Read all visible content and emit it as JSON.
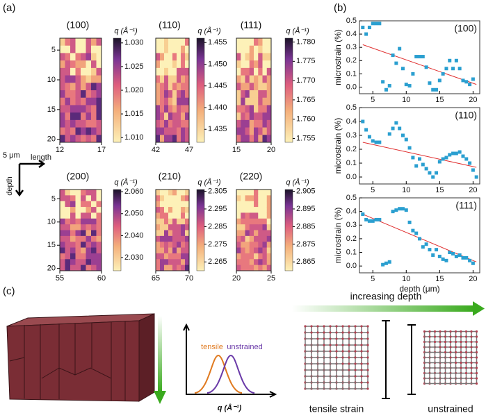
{
  "panel_labels": [
    "(a)",
    "(b)",
    "(c)"
  ],
  "chart_data": [
    {
      "type": "heatmap",
      "title": "(100)",
      "colorbar_label": "q (Å⁻¹)",
      "clim": [
        1.009,
        1.031
      ],
      "cticks": [
        {
          "value": 1.01,
          "label": "1.010"
        },
        {
          "value": 1.015,
          "label": "1.015"
        },
        {
          "value": 1.02,
          "label": "1.020"
        },
        {
          "value": 1.025,
          "label": "1.025"
        },
        {
          "value": 1.03,
          "label": "1.030"
        }
      ],
      "xlim": [
        12,
        17
      ],
      "xticks": [
        12,
        17
      ],
      "ylim": [
        3,
        20.5
      ],
      "yticks": [
        5,
        10,
        15,
        20
      ]
    },
    {
      "type": "heatmap",
      "title": "(110)",
      "colorbar_label": "q (Å⁻¹)",
      "clim": [
        1.432,
        1.456
      ],
      "cticks": [
        {
          "value": 1.435,
          "label": "1.435"
        },
        {
          "value": 1.44,
          "label": "1.440"
        },
        {
          "value": 1.445,
          "label": "1.445"
        },
        {
          "value": 1.45,
          "label": "1.450"
        },
        {
          "value": 1.455,
          "label": "1.455"
        }
      ],
      "xlim": [
        42,
        47
      ],
      "xticks": [
        42,
        47
      ],
      "ylim": [
        3,
        20.5
      ]
    },
    {
      "type": "heatmap",
      "title": "(111)",
      "colorbar_label": "q (Å⁻¹)",
      "clim": [
        1.754,
        1.781
      ],
      "cticks": [
        {
          "value": 1.755,
          "label": "1.755"
        },
        {
          "value": 1.76,
          "label": "1.760"
        },
        {
          "value": 1.765,
          "label": "1.765"
        },
        {
          "value": 1.77,
          "label": "1.770"
        },
        {
          "value": 1.775,
          "label": "1.775"
        },
        {
          "value": 1.78,
          "label": "1.780"
        }
      ],
      "xlim": [
        15,
        20
      ],
      "xticks": [
        15,
        20
      ],
      "ylim": [
        3,
        20.5
      ]
    },
    {
      "type": "heatmap",
      "title": "(200)",
      "colorbar_label": "q (Å⁻¹)",
      "clim": [
        2.024,
        2.061
      ],
      "cticks": [
        {
          "value": 2.03,
          "label": "2.030"
        },
        {
          "value": 2.04,
          "label": "2.040"
        },
        {
          "value": 2.05,
          "label": "2.050"
        },
        {
          "value": 2.06,
          "label": "2.060"
        }
      ],
      "xlim": [
        55,
        60
      ],
      "xticks": [
        55,
        60
      ],
      "ylim": [
        3,
        20.5
      ],
      "yticks": [
        5,
        10,
        15,
        20
      ]
    },
    {
      "type": "heatmap",
      "title": "(210)",
      "colorbar_label": "q (Å⁻¹)",
      "clim": [
        2.26,
        2.306
      ],
      "cticks": [
        {
          "value": 2.265,
          "label": "2.265"
        },
        {
          "value": 2.275,
          "label": "2.275"
        },
        {
          "value": 2.285,
          "label": "2.285"
        },
        {
          "value": 2.295,
          "label": "2.295"
        },
        {
          "value": 2.305,
          "label": "2.305"
        }
      ],
      "xlim": [
        65,
        70
      ],
      "xticks": [
        65,
        70
      ],
      "ylim": [
        3,
        20.5
      ]
    },
    {
      "type": "heatmap",
      "title": "(220)",
      "colorbar_label": "q (Å⁻¹)",
      "clim": [
        2.86,
        2.906
      ],
      "cticks": [
        {
          "value": 2.865,
          "label": "2.865"
        },
        {
          "value": 2.875,
          "label": "2.875"
        },
        {
          "value": 2.885,
          "label": "2.885"
        },
        {
          "value": 2.895,
          "label": "2.895"
        },
        {
          "value": 2.905,
          "label": "2.905"
        }
      ],
      "xlim": [
        20,
        25
      ],
      "xticks": [
        20,
        25
      ],
      "ylim": [
        3,
        20.5
      ]
    },
    {
      "type": "scatter",
      "title": "(100)",
      "ylabel": "microstrain (%)",
      "color": "#2a9fd0",
      "fit_color": "#e03030",
      "x": [
        3.5,
        4,
        4.5,
        5,
        5.5,
        6,
        6.5,
        7,
        7.5,
        8,
        8.5,
        9,
        9.5,
        10,
        10.5,
        11,
        11.5,
        12,
        12.5,
        13,
        13.5,
        14,
        14.5,
        15,
        15.5,
        16,
        16.5,
        17,
        17.5,
        18,
        18.5,
        19,
        19.5,
        20
      ],
      "values": [
        0.45,
        0.4,
        0.45,
        0.48,
        0.48,
        0.48,
        0.04,
        -0.02,
        0.01,
        0.24,
        0.18,
        0.29,
        0.14,
        0.02,
        0.01,
        0.1,
        0.23,
        0.23,
        0.23,
        0.15,
        0.03,
        -0.02,
        -0.02,
        0.05,
        0.1,
        0.14,
        0.2,
        0.14,
        0.2,
        0.14,
        0.05,
        0.04,
        0.02,
        0.06
      ],
      "fit": {
        "x": [
          3.5,
          20.5
        ],
        "values": [
          0.32,
          0.02
        ]
      },
      "xlim": [
        3,
        21
      ],
      "xticks": [
        5,
        10,
        15,
        20
      ],
      "ylim": [
        -0.05,
        0.5
      ],
      "yticks": [
        {
          "value": 0,
          "label": "0.0"
        },
        {
          "value": 0.1,
          "label": "0.1"
        },
        {
          "value": 0.2,
          "label": "0.2"
        },
        {
          "value": 0.3,
          "label": "0.3"
        },
        {
          "value": 0.4,
          "label": "0.4"
        },
        {
          "value": 0.5,
          "label": "0.5"
        }
      ]
    },
    {
      "type": "scatter",
      "title": "(110)",
      "ylabel": "microstrain (%)",
      "color": "#2a9fd0",
      "fit_color": "#e03030",
      "x": [
        3.5,
        4,
        4.5,
        5,
        5.5,
        6,
        7.5,
        8,
        8.5,
        9,
        9.5,
        10,
        10.5,
        11,
        11.5,
        12,
        12.5,
        13,
        13.5,
        14,
        14.5,
        15,
        15.5,
        16,
        16.5,
        17,
        17.5,
        18,
        18.5,
        19,
        19.5,
        20,
        20.5
      ],
      "values": [
        0.4,
        0.34,
        0.29,
        0.26,
        0.25,
        0.25,
        0.31,
        0.35,
        0.39,
        0.35,
        0.3,
        0.27,
        0.21,
        0.14,
        0.08,
        0.13,
        0.09,
        0.06,
        0.03,
        0.0,
        0.03,
        0.11,
        0.13,
        0.14,
        0.16,
        0.17,
        0.17,
        0.18,
        0.15,
        0.13,
        0.1,
        0.05,
        0.0
      ],
      "fit": {
        "x": [
          3.5,
          20.5
        ],
        "values": [
          0.25,
          0.07
        ]
      },
      "xlim": [
        3,
        21
      ],
      "xticks": [
        5,
        10,
        15,
        20
      ],
      "ylim": [
        -0.05,
        0.5
      ],
      "yticks": [
        {
          "value": 0,
          "label": "0.0"
        },
        {
          "value": 0.1,
          "label": "0.1"
        },
        {
          "value": 0.2,
          "label": "0.2"
        },
        {
          "value": 0.3,
          "label": "0.3"
        },
        {
          "value": 0.4,
          "label": "0.4"
        },
        {
          "value": 0.5,
          "label": "0.5"
        }
      ]
    },
    {
      "type": "scatter",
      "title": "(111)",
      "ylabel": "microstrain (%)",
      "xlabel": "depth (μm)",
      "color": "#2a9fd0",
      "fit_color": "#e03030",
      "x": [
        3.5,
        4,
        4.5,
        5,
        5.5,
        6,
        6.5,
        7,
        7.5,
        8,
        8.5,
        9,
        9.5,
        10,
        10.5,
        11,
        11.5,
        12,
        12.5,
        13,
        13.5,
        14,
        14.5,
        15,
        15.5,
        16,
        16.5,
        17,
        17.5,
        18,
        18.5,
        19,
        19.5,
        20
      ],
      "values": [
        0.38,
        0.34,
        0.33,
        0.33,
        0.34,
        0.34,
        0.01,
        0.02,
        0.03,
        0.4,
        0.41,
        0.42,
        0.42,
        0.41,
        0.32,
        0.26,
        0.24,
        0.2,
        0.14,
        0.16,
        0.12,
        0.08,
        0.12,
        0.07,
        0.05,
        0.04,
        0.1,
        0.09,
        0.07,
        0.08,
        0.06,
        0.06,
        0.04,
        0.02
      ],
      "fit": {
        "x": [
          3.5,
          20.5
        ],
        "values": [
          0.38,
          0.03
        ]
      },
      "xlim": [
        3,
        21
      ],
      "xticks": [
        5,
        10,
        15,
        20
      ],
      "ylim": [
        -0.05,
        0.5
      ],
      "yticks": [
        {
          "value": 0,
          "label": "0.0"
        },
        {
          "value": 0.1,
          "label": "0.1"
        },
        {
          "value": 0.2,
          "label": "0.2"
        },
        {
          "value": 0.3,
          "label": "0.3"
        },
        {
          "value": 0.4,
          "label": "0.4"
        },
        {
          "value": 0.5,
          "label": "0.5"
        }
      ]
    }
  ],
  "compass": {
    "scale": "5 μm",
    "horizontal": "length",
    "vertical": "depth"
  },
  "schematic": {
    "peak_tensile": "tensile",
    "peak_unstrained": "unstrained",
    "peak_axis": "q (Å⁻¹)",
    "arrow": "increasing depth",
    "lattice_left": "tensile strain",
    "lattice_right": "unstrained"
  }
}
